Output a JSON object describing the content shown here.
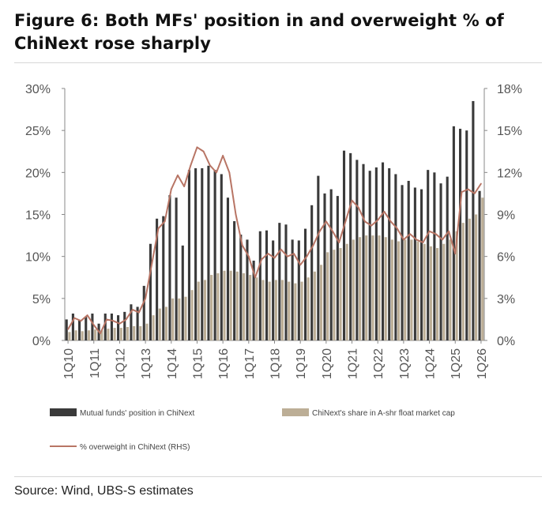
{
  "title": "Figure 6: Both MFs' position in and overweight % of ChiNext rose sharply",
  "source": "Source: Wind, UBS-S estimates",
  "chart_data": {
    "type": "bar",
    "title": "Figure 6: Both MFs' position in and overweight % of ChiNext rose sharply",
    "x_tick_labels": [
      "1Q10",
      "1Q11",
      "1Q12",
      "1Q13",
      "1Q14",
      "1Q15",
      "1Q16",
      "1Q17",
      "1Q18",
      "1Q19",
      "1Q20",
      "1Q21",
      "1Q22",
      "1Q23",
      "1Q24",
      "1Q25",
      "1Q26"
    ],
    "categories": [
      "1Q10",
      "2Q10",
      "3Q10",
      "4Q10",
      "1Q11",
      "2Q11",
      "3Q11",
      "4Q11",
      "1Q12",
      "2Q12",
      "3Q12",
      "4Q12",
      "1Q13",
      "2Q13",
      "3Q13",
      "4Q13",
      "1Q14",
      "2Q14",
      "3Q14",
      "4Q14",
      "1Q15",
      "2Q15",
      "3Q15",
      "4Q15",
      "1Q16",
      "2Q16",
      "3Q16",
      "4Q16",
      "1Q17",
      "2Q17",
      "3Q17",
      "4Q17",
      "1Q18",
      "2Q18",
      "3Q18",
      "4Q18",
      "1Q19",
      "2Q19",
      "3Q19",
      "4Q19",
      "1Q20",
      "2Q20",
      "3Q20",
      "4Q20",
      "1Q21",
      "2Q21",
      "3Q21",
      "4Q21",
      "1Q22",
      "2Q22",
      "3Q22",
      "4Q22",
      "1Q23",
      "2Q23",
      "3Q23",
      "4Q23",
      "1Q24",
      "2Q24",
      "3Q24",
      "4Q24",
      "1Q25",
      "2Q25",
      "3Q25",
      "4Q25",
      "1Q26"
    ],
    "y_left": {
      "min": 0,
      "max": 30,
      "ticks": [
        "0%",
        "5%",
        "10%",
        "15%",
        "20%",
        "25%",
        "30%"
      ]
    },
    "y_right": {
      "min": 0,
      "max": 18,
      "ticks": [
        "0%",
        "3%",
        "6%",
        "9%",
        "12%",
        "15%",
        "18%"
      ]
    },
    "series": [
      {
        "name": "Mutual funds' position in ChiNext",
        "kind": "bar",
        "axis": "left",
        "color": "#3a3a3a",
        "values": [
          2.5,
          3.2,
          2.4,
          2.8,
          3.2,
          2.0,
          3.2,
          3.2,
          3.0,
          3.4,
          4.3,
          4.0,
          6.5,
          11.5,
          14.5,
          14.8,
          17.3,
          17.0,
          11.3,
          20.3,
          20.5,
          20.5,
          20.8,
          20.3,
          19.8,
          17.0,
          14.2,
          12.6,
          12.0,
          9.5,
          13.0,
          13.1,
          11.9,
          14.0,
          13.8,
          12.0,
          11.9,
          13.3,
          16.1,
          19.6,
          17.5,
          18.0,
          17.2,
          22.6,
          22.3,
          21.5,
          21.0,
          20.2,
          20.6,
          21.2,
          20.5,
          19.8,
          18.5,
          19.0,
          18.2,
          18.0,
          20.3,
          20.0,
          18.7,
          19.5,
          25.5,
          25.2,
          25.0,
          28.5,
          17.8
        ]
      },
      {
        "name": "ChiNext's share in A-shr float market cap",
        "kind": "bar",
        "axis": "left",
        "color": "#bcae96",
        "values": [
          1.0,
          1.2,
          1.1,
          1.2,
          1.3,
          1.2,
          1.4,
          1.5,
          1.5,
          1.6,
          1.7,
          1.7,
          2.0,
          3.0,
          3.8,
          4.0,
          5.0,
          5.0,
          5.2,
          6.0,
          7.0,
          7.2,
          7.8,
          8.0,
          8.3,
          8.3,
          8.2,
          8.0,
          7.8,
          7.5,
          7.2,
          7.0,
          7.2,
          7.2,
          7.0,
          6.8,
          7.0,
          7.5,
          8.2,
          9.0,
          10.5,
          10.8,
          11.0,
          11.5,
          12.0,
          12.3,
          12.5,
          12.5,
          12.5,
          12.3,
          12.0,
          11.8,
          12.0,
          12.0,
          11.8,
          11.5,
          11.2,
          11.0,
          11.5,
          12.0,
          13.0,
          14.0,
          14.5,
          15.0,
          17.0
        ]
      },
      {
        "name": "% overweight in ChiNext (RHS)",
        "kind": "line",
        "axis": "right",
        "color": "#b87565",
        "values": [
          0.8,
          1.6,
          1.4,
          1.8,
          1.1,
          0.5,
          1.5,
          1.4,
          1.2,
          1.5,
          2.2,
          2.0,
          3.0,
          5.5,
          8.0,
          8.5,
          10.8,
          11.8,
          11.0,
          12.5,
          13.8,
          13.5,
          12.5,
          12.0,
          13.2,
          12.0,
          9.0,
          6.8,
          6.0,
          4.5,
          5.8,
          6.2,
          5.9,
          6.5,
          6.0,
          6.2,
          5.4,
          6.0,
          6.8,
          7.8,
          8.5,
          7.8,
          7.0,
          8.5,
          10.0,
          9.5,
          8.5,
          8.2,
          8.6,
          9.2,
          8.5,
          8.0,
          7.2,
          7.6,
          7.2,
          7.0,
          7.8,
          7.6,
          7.2,
          7.8,
          6.2,
          10.6,
          10.8,
          10.5,
          11.2
        ]
      }
    ],
    "legend_position": "bottom",
    "grid": false
  }
}
